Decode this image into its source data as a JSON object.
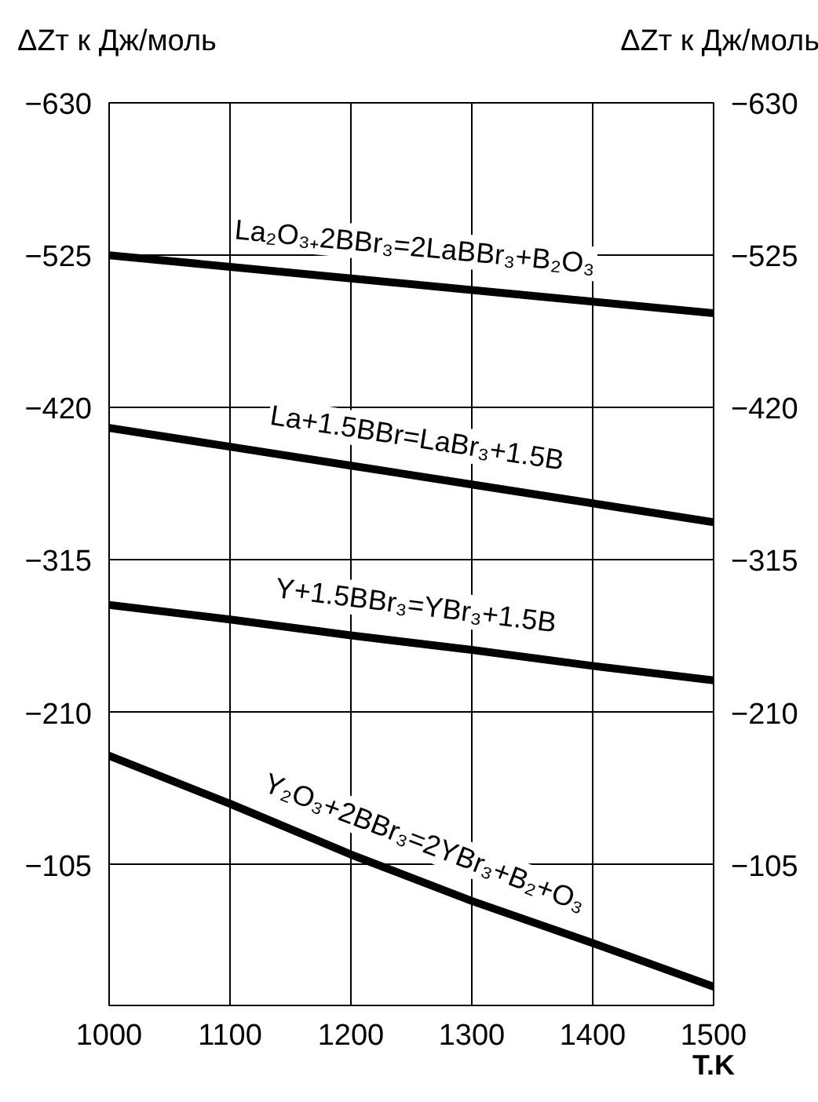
{
  "chart_data": {
    "type": "line",
    "ylabel": "ΔZт  к Дж/моль",
    "y2label": "ΔZт  к Дж/моль",
    "xlabel": "T.K",
    "x": [
      1000,
      1100,
      1200,
      1300,
      1400,
      1500
    ],
    "series": [
      {
        "name": "La₂O₃₊2BBr₃=2LaBBr₃+B₂O₃",
        "color": "#000000",
        "values": [
          -525,
          -517,
          -509,
          -501,
          -493,
          -485
        ]
      },
      {
        "name": "La+1.5BBr=LaBr₃+1.5B",
        "color": "#000000",
        "values": [
          -406,
          -393,
          -380,
          -367,
          -354,
          -341
        ]
      },
      {
        "name": "Y+1.5BBr₃=YBr₃+1.5B",
        "color": "#000000",
        "values": [
          -284,
          -274,
          -263,
          -253,
          -242,
          -232
        ]
      },
      {
        "name": "Y₂O₃+2BBr₃=2YBr₃+B₂+O₃",
        "color": "#000000",
        "values": [
          -180,
          -147,
          -112,
          -80,
          -51,
          -21
        ]
      }
    ],
    "xlim": [
      1000,
      1500
    ],
    "xticks": [
      1000,
      1100,
      1200,
      1300,
      1400,
      1500
    ],
    "ylim": [
      -8,
      -630
    ],
    "yticks": [
      -630,
      -525,
      -420,
      -315,
      -210,
      -105
    ],
    "y2lim": [
      -8,
      -630
    ],
    "y2ticks": [
      -630,
      -525,
      -420,
      -315,
      -210,
      -105
    ],
    "grid": true,
    "legend": false,
    "marker": "none",
    "line_style": "solid"
  }
}
